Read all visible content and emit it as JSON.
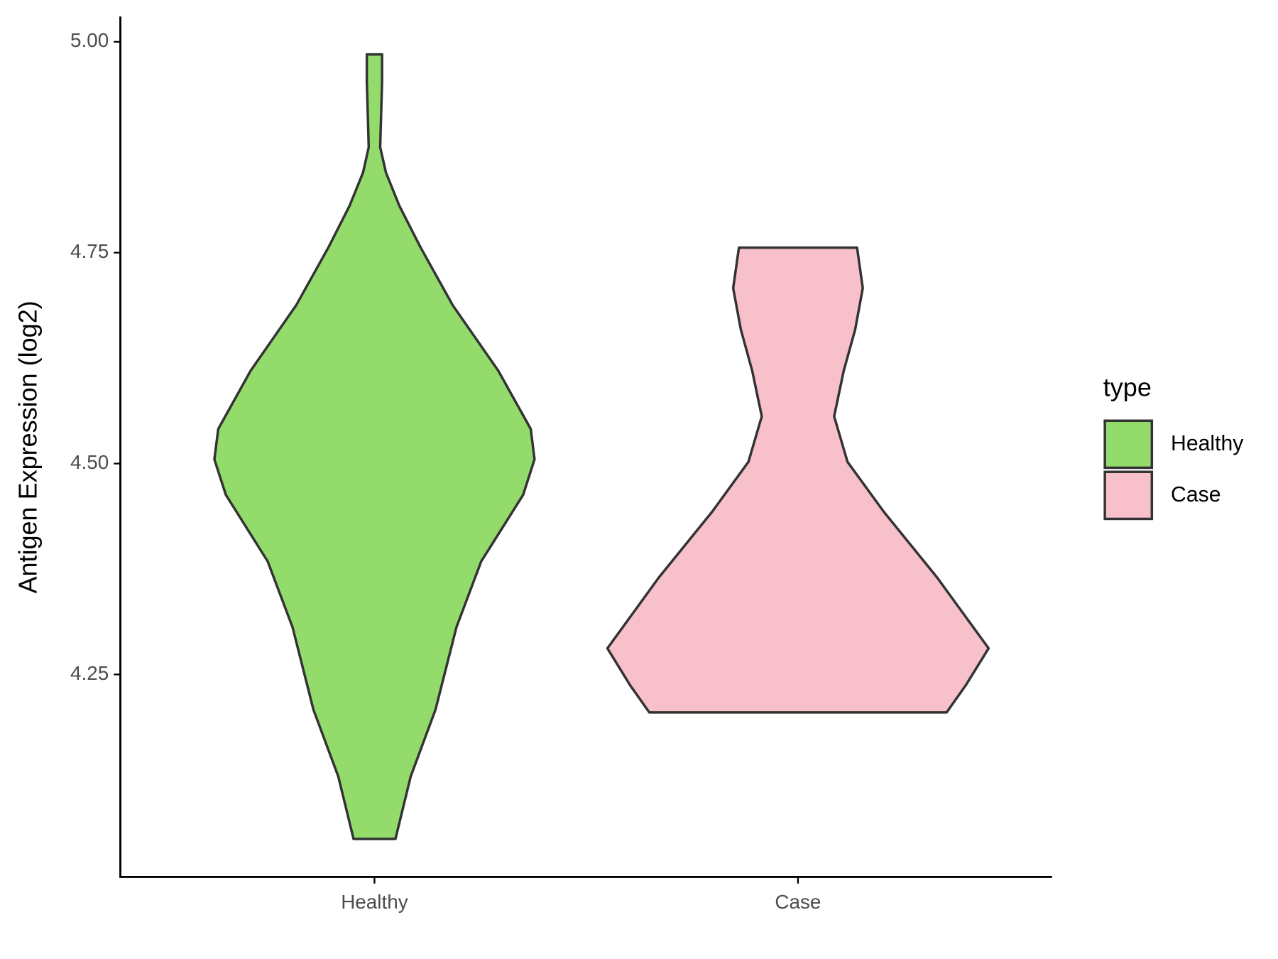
{
  "chart_data": {
    "type": "violin",
    "y_label": "Antigen Expression (log2)",
    "categories": [
      "Healthy",
      "Case"
    ],
    "legend_title": "type",
    "legend_position": "right",
    "ylim": [
      4.01,
      5.03
    ],
    "yticks": [
      {
        "value": 4.25,
        "label": "4.25"
      },
      {
        "value": 4.5,
        "label": "4.50"
      },
      {
        "value": 4.75,
        "label": "4.75"
      },
      {
        "value": 5,
        "label": "5.00"
      }
    ],
    "series": [
      {
        "name": "Healthy",
        "color": "#93dc6b",
        "y": [
          4.985,
          4.953,
          4.875,
          4.845,
          4.806,
          4.757,
          4.688,
          4.61,
          4.541,
          4.505,
          4.463,
          4.384,
          4.306,
          4.208,
          4.129,
          4.055
        ],
        "widths": [
          0.04,
          0.04,
          0.03,
          0.06,
          0.13,
          0.24,
          0.41,
          0.65,
          0.82,
          0.84,
          0.78,
          0.56,
          0.43,
          0.32,
          0.19,
          0.11
        ]
      },
      {
        "name": "Case",
        "color": "#f7c0cb",
        "y": [
          4.756,
          4.708,
          4.659,
          4.61,
          4.556,
          4.502,
          4.443,
          4.365,
          4.281,
          4.237,
          4.205
        ],
        "widths": [
          0.31,
          0.34,
          0.3,
          0.24,
          0.19,
          0.26,
          0.45,
          0.73,
          1.0,
          0.88,
          0.78
        ]
      }
    ]
  }
}
